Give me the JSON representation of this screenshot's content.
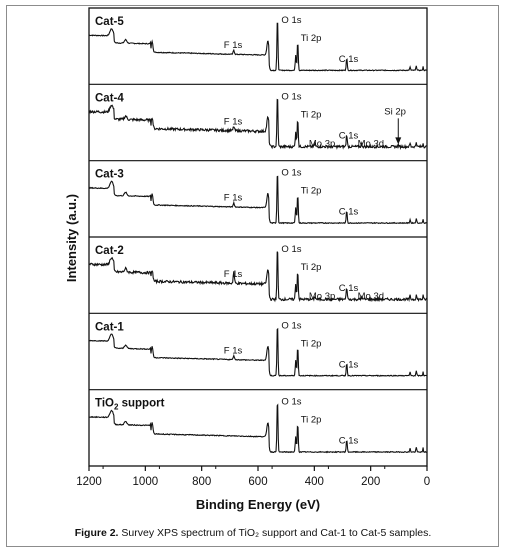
{
  "chart_data": {
    "type": "line",
    "xlabel": "Binding Energy (eV)",
    "ylabel": "Intensity (a.u.)",
    "xlim": [
      1200,
      0
    ],
    "x_reversed": true,
    "x_ticks": [
      "1200",
      "1000",
      "800",
      "600",
      "400",
      "200",
      "0"
    ],
    "x_tick_values": [
      1200,
      1000,
      800,
      600,
      400,
      200,
      0
    ],
    "grid": false,
    "panels": [
      {
        "name": "Cat-5",
        "peaks": [
          {
            "label": "O 1s",
            "x": 531
          },
          {
            "label": "Ti 2p",
            "x": 459
          },
          {
            "label": "F 1s",
            "x": 686
          },
          {
            "label": "C 1s",
            "x": 285
          }
        ]
      },
      {
        "name": "Cat-4",
        "peaks": [
          {
            "label": "O 1s",
            "x": 531
          },
          {
            "label": "Ti 2p",
            "x": 459
          },
          {
            "label": "F 1s",
            "x": 686
          },
          {
            "label": "C 1s",
            "x": 285
          },
          {
            "label": "Mo 3p",
            "x": 398
          },
          {
            "label": "Mo 3d",
            "x": 232
          },
          {
            "label": "Si 2p",
            "x": 102
          }
        ]
      },
      {
        "name": "Cat-3",
        "peaks": [
          {
            "label": "O 1s",
            "x": 531
          },
          {
            "label": "Ti 2p",
            "x": 459
          },
          {
            "label": "F 1s",
            "x": 686
          },
          {
            "label": "C 1s",
            "x": 285
          }
        ]
      },
      {
        "name": "Cat-2",
        "peaks": [
          {
            "label": "O 1s",
            "x": 531
          },
          {
            "label": "Ti 2p",
            "x": 459
          },
          {
            "label": "F 1s",
            "x": 686
          },
          {
            "label": "C 1s",
            "x": 285
          },
          {
            "label": "Mo 3p",
            "x": 398
          },
          {
            "label": "Mo 3d",
            "x": 232
          }
        ]
      },
      {
        "name": "Cat-1",
        "peaks": [
          {
            "label": "O 1s",
            "x": 531
          },
          {
            "label": "Ti 2p",
            "x": 459
          },
          {
            "label": "F 1s",
            "x": 686
          },
          {
            "label": "C 1s",
            "x": 285
          }
        ]
      },
      {
        "name": "TiO2 support",
        "name_main": "TiO",
        "name_sub": "2",
        "name_rest": " support",
        "peaks": [
          {
            "label": "O 1s",
            "x": 531
          },
          {
            "label": "Ti 2p",
            "x": 459
          },
          {
            "label": "C 1s",
            "x": 285
          }
        ]
      }
    ]
  },
  "caption": {
    "prefix": "Figure 2.",
    "text": "Survey XPS spectrum of TiO₂ support and Cat-1 to Cat-5 samples."
  }
}
